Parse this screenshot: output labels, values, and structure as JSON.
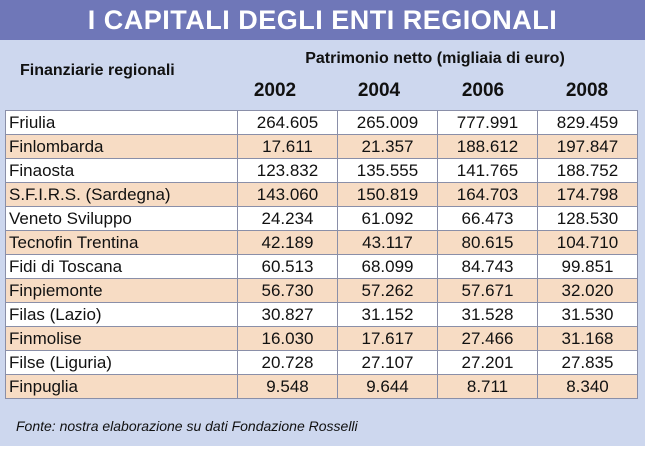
{
  "title": "I CAPITALI DEGLI ENTI REGIONALI",
  "header": {
    "row_label": "Finanziarie regionali",
    "group_label": "Patrimonio netto (migliaia di euro)",
    "years": [
      "2002",
      "2004",
      "2006",
      "2008"
    ]
  },
  "rows": [
    {
      "name": "Friulia",
      "values": [
        "264.605",
        "265.009",
        "777.991",
        "829.459"
      ]
    },
    {
      "name": "Finlombarda",
      "values": [
        "17.611",
        "21.357",
        "188.612",
        "197.847"
      ]
    },
    {
      "name": "Finaosta",
      "values": [
        "123.832",
        "135.555",
        "141.765",
        "188.752"
      ]
    },
    {
      "name": "S.F.I.R.S. (Sardegna)",
      "values": [
        "143.060",
        "150.819",
        "164.703",
        "174.798"
      ]
    },
    {
      "name": "Veneto Sviluppo",
      "values": [
        "24.234",
        "61.092",
        "66.473",
        "128.530"
      ]
    },
    {
      "name": "Tecnofin Trentina",
      "values": [
        "42.189",
        "43.117",
        "80.615",
        "104.710"
      ]
    },
    {
      "name": "Fidi di Toscana",
      "values": [
        "60.513",
        "68.099",
        "84.743",
        "99.851"
      ]
    },
    {
      "name": "Finpiemonte",
      "values": [
        "56.730",
        "57.262",
        "57.671",
        "32.020"
      ]
    },
    {
      "name": "Filas (Lazio)",
      "values": [
        "30.827",
        "31.152",
        "31.528",
        "31.530"
      ]
    },
    {
      "name": "Finmolise",
      "values": [
        "16.030",
        "17.617",
        "27.466",
        "31.168"
      ]
    },
    {
      "name": "Filse (Liguria)",
      "values": [
        "20.728",
        "27.107",
        "27.201",
        "27.835"
      ]
    },
    {
      "name": "Finpuglia",
      "values": [
        "9.548",
        "9.644",
        "8.711",
        "8.340"
      ]
    }
  ],
  "footer": "Fonte: nostra elaborazione su dati Fondazione Rosselli",
  "colors": {
    "title_bg": "#6f77b8",
    "page_bg": "#cdd7ee",
    "row_alt": "#f7dcc4",
    "row_plain": "#ffffff"
  }
}
